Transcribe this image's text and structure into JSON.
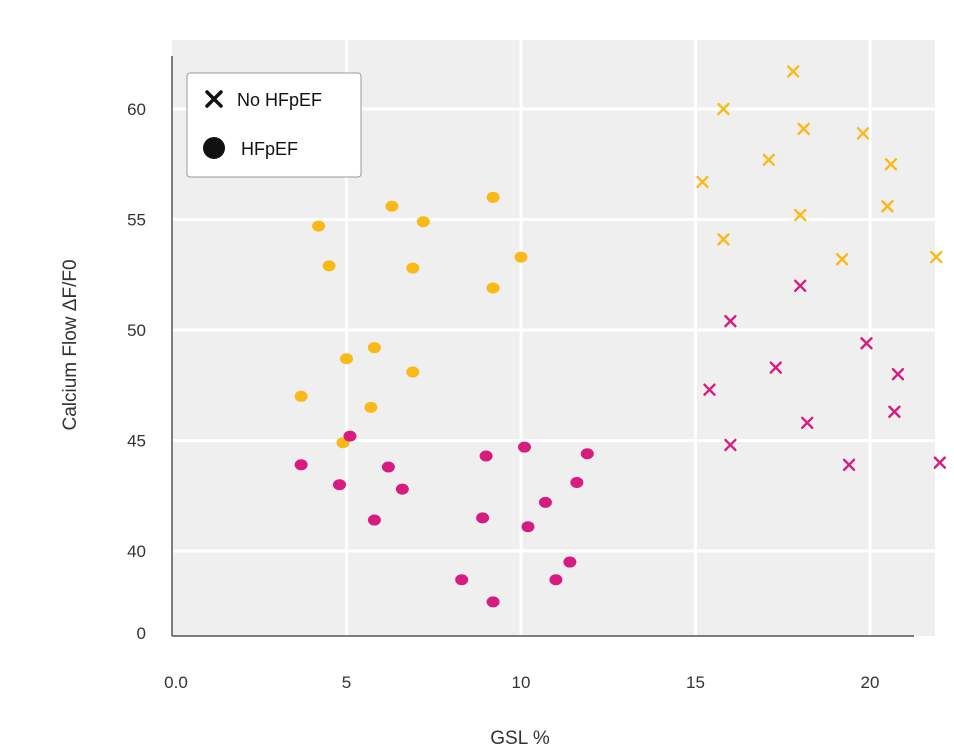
{
  "chart_data": {
    "type": "scatter",
    "xlabel": "GSL %",
    "ylabel": "Calcium Flow ΔF/F0",
    "xlim": [
      0,
      23
    ],
    "ylim": [
      36.5,
      62.5
    ],
    "x_ticks": [
      {
        "value": 0,
        "label": "0.0"
      },
      {
        "value": 5,
        "label": "5"
      },
      {
        "value": 10,
        "label": "10"
      },
      {
        "value": 15,
        "label": "15"
      },
      {
        "value": 20,
        "label": "20"
      }
    ],
    "y_ticks": [
      {
        "value": 40,
        "label": "40"
      },
      {
        "value": 45,
        "label": "45"
      },
      {
        "value": 50,
        "label": "50"
      },
      {
        "value": 55,
        "label": "55"
      },
      {
        "value": 60,
        "label": "60"
      }
    ],
    "y_origin_label": "0",
    "grid": true,
    "legend": {
      "position": "top-left",
      "entries": [
        {
          "label": "No HFpEF",
          "marker": "x"
        },
        {
          "label": "HFpEF",
          "marker": "circle"
        }
      ]
    },
    "colors": {
      "orange": "#fbb917",
      "magenta": "#d81b7e",
      "background": "#efefef",
      "grid": "#ffffff",
      "axis": "#555555"
    },
    "series": [
      {
        "marker": "circle",
        "color": "orange",
        "points": [
          [
            4.2,
            54.7
          ],
          [
            4.5,
            52.9
          ],
          [
            6.3,
            55.6
          ],
          [
            7.2,
            54.9
          ],
          [
            6.9,
            52.8
          ],
          [
            9.2,
            56.0
          ],
          [
            10.0,
            53.3
          ],
          [
            9.2,
            51.9
          ],
          [
            3.7,
            47.0
          ],
          [
            5.0,
            48.7
          ],
          [
            5.8,
            49.2
          ],
          [
            6.9,
            48.1
          ],
          [
            5.7,
            46.5
          ],
          [
            4.9,
            44.9
          ]
        ]
      },
      {
        "marker": "circle",
        "color": "magenta",
        "points": [
          [
            3.7,
            43.9
          ],
          [
            5.1,
            45.2
          ],
          [
            4.8,
            43.0
          ],
          [
            6.2,
            43.8
          ],
          [
            6.6,
            42.8
          ],
          [
            5.8,
            41.4
          ],
          [
            9.0,
            44.3
          ],
          [
            10.1,
            44.7
          ],
          [
            8.9,
            41.5
          ],
          [
            10.2,
            41.1
          ],
          [
            10.7,
            42.2
          ],
          [
            11.6,
            43.1
          ],
          [
            11.9,
            44.4
          ],
          [
            8.3,
            38.7
          ],
          [
            11.0,
            38.7
          ],
          [
            11.4,
            39.5
          ],
          [
            9.2,
            37.7
          ]
        ]
      },
      {
        "marker": "x",
        "color": "orange",
        "points": [
          [
            15.2,
            56.7
          ],
          [
            15.8,
            60.0
          ],
          [
            15.8,
            54.1
          ],
          [
            17.1,
            57.7
          ],
          [
            17.8,
            61.7
          ],
          [
            18.0,
            55.2
          ],
          [
            18.1,
            59.1
          ],
          [
            19.8,
            58.9
          ],
          [
            20.6,
            57.5
          ],
          [
            20.5,
            55.6
          ],
          [
            19.2,
            53.2
          ],
          [
            21.9,
            53.3
          ]
        ]
      },
      {
        "marker": "x",
        "color": "magenta",
        "points": [
          [
            18.0,
            52.0
          ],
          [
            16.0,
            50.4
          ],
          [
            15.4,
            47.3
          ],
          [
            17.3,
            48.3
          ],
          [
            16.0,
            44.8
          ],
          [
            19.9,
            49.4
          ],
          [
            20.8,
            48.0
          ],
          [
            20.7,
            46.3
          ],
          [
            18.2,
            45.8
          ],
          [
            19.4,
            43.9
          ],
          [
            22.0,
            44.0
          ]
        ]
      }
    ]
  }
}
